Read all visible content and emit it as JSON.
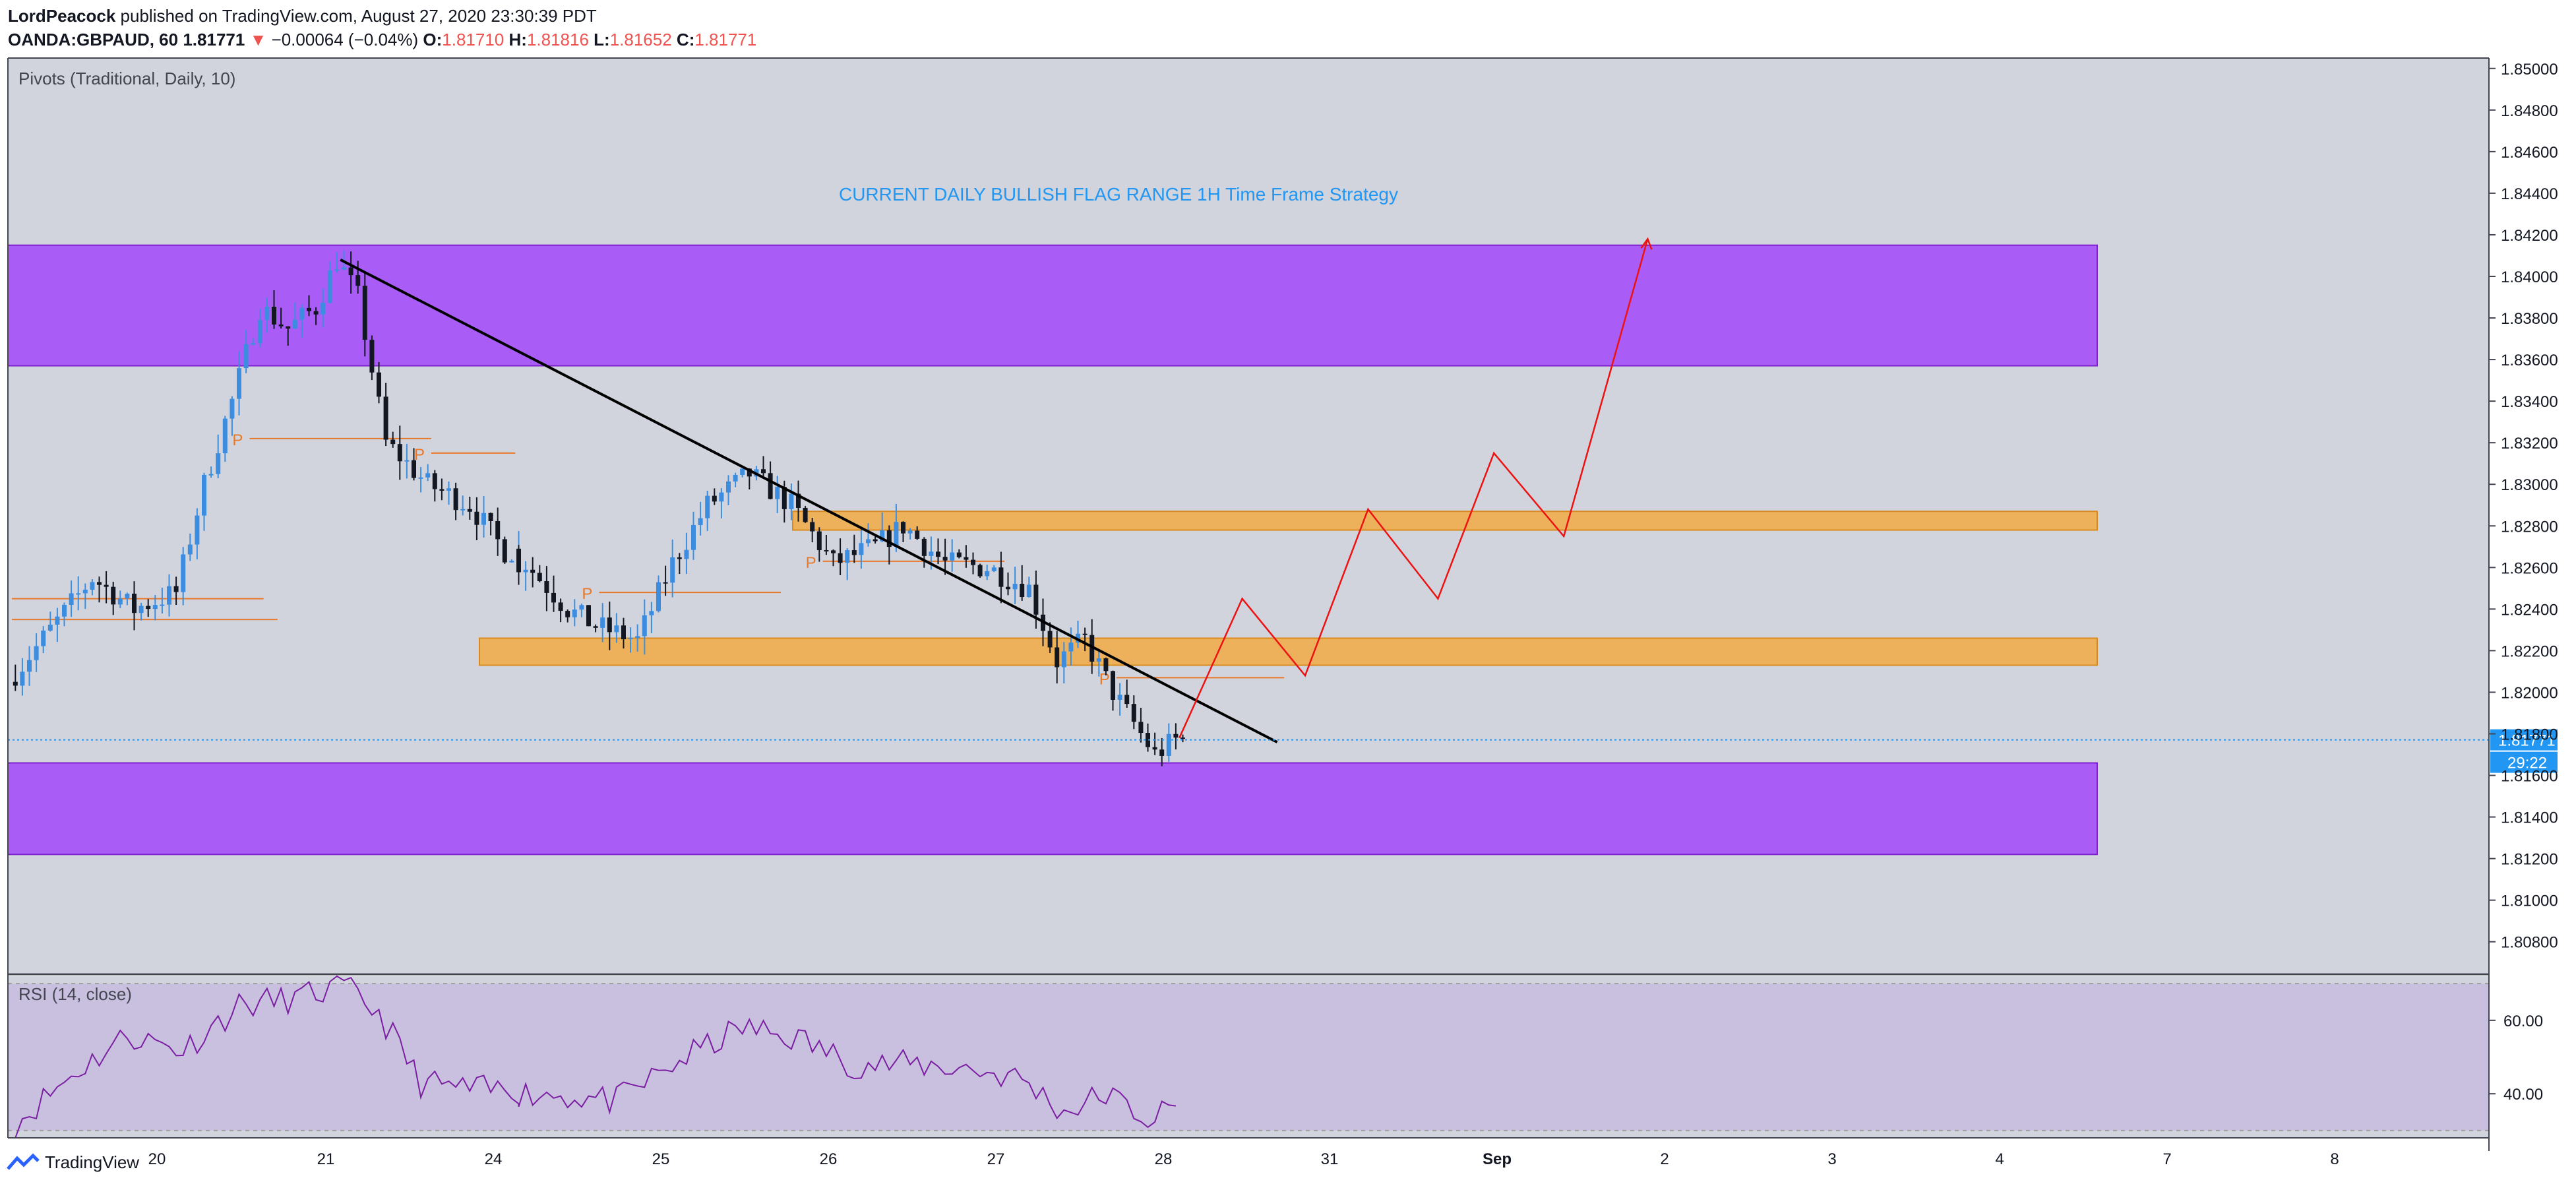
{
  "header": {
    "author": "LordPeacock",
    "published_text": "published on TradingView.com, August 27, 2020 23:30:39 PDT",
    "symbol": "OANDA:GBPAUD, 60",
    "last": "1.81771",
    "change_arrow": "▼",
    "change": "−0.00064 (−0.04%)",
    "o_label": "O:",
    "o_value": "1.81710",
    "h_label": "H:",
    "h_value": "1.81816",
    "l_label": "L:",
    "l_value": "1.81652",
    "c_label": "C:",
    "c_value": "1.81771"
  },
  "colors": {
    "pane_bg": "#d1d4dc",
    "rsi_bg": "#c9bfdf",
    "purple_zone": "#a855f7",
    "orange_zone": "#f0ad4e",
    "candle_up": "#3c8de0",
    "candle_down": "#131722",
    "projection": "#ee1111",
    "trendline": "#000000",
    "pivot": "#e8792b",
    "title_text": "#2196f3",
    "rsi_line": "#7b1fa2",
    "price_tag": "#2196f3"
  },
  "chart_data": [
    {
      "type": "candlestick",
      "symbol": "OANDA:GBPAUD",
      "interval": "60",
      "indicator_label": "Pivots (Traditional, Daily, 10)",
      "annotation": "CURRENT DAILY BULLISH FLAG RANGE 1H Time Frame Strategy",
      "ylim": [
        1.8065,
        1.8505
      ],
      "y_ticks": [
        "1.85000",
        "1.84800",
        "1.84600",
        "1.84400",
        "1.84200",
        "1.84000",
        "1.83800",
        "1.83600",
        "1.83400",
        "1.83200",
        "1.83000",
        "1.82800",
        "1.82600",
        "1.82400",
        "1.82200",
        "1.82000",
        "1.81800",
        "1.81600",
        "1.81400",
        "1.81200",
        "1.81000",
        "1.80800"
      ],
      "x_ticks": [
        "20",
        "21",
        "24",
        "25",
        "26",
        "27",
        "28",
        "31",
        "Sep",
        "2",
        "3",
        "4",
        "7",
        "8"
      ],
      "current_price": "1.81771",
      "countdown": "29:22",
      "zones": [
        {
          "kind": "supply",
          "from": 1.8357,
          "to": 1.8415,
          "color": "purple"
        },
        {
          "kind": "demand",
          "from": 1.8122,
          "to": 1.8166,
          "color": "purple"
        },
        {
          "kind": "resistance",
          "from": 1.8278,
          "to": 1.8287,
          "color": "orange"
        },
        {
          "kind": "support",
          "from": 1.8213,
          "to": 1.8226,
          "color": "orange"
        }
      ],
      "trendline": {
        "start": [
          "Aug 20 23:00",
          1.8408
        ],
        "end": [
          "Aug 28 13:00",
          1.8176
        ]
      },
      "pivot_label": "P",
      "pivots": [
        {
          "start": "Aug 20 10:00",
          "end": "Aug 21 12:00",
          "level": 1.8322
        },
        {
          "start": "Aug 21 12:00",
          "end": "Aug 22 10:00",
          "level": 1.8315
        },
        {
          "start": "Aug 24 12:00",
          "end": "Aug 25 14:00",
          "level": 1.8248
        },
        {
          "start": "Aug 25 20:00",
          "end": "Aug 26 22:00",
          "level": 1.8263
        },
        {
          "start": "Aug 27 14:00",
          "end": "Aug 28 14:00",
          "level": 1.8207
        },
        {
          "start": "Aug 19 00:00",
          "end": "Aug 20 12:00",
          "level": 1.8245
        },
        {
          "start": "Aug 19 00:00",
          "end": "Aug 20 14:00",
          "level": 1.8235
        }
      ],
      "projection_path": [
        [
          "Aug 27 23:00",
          1.8178
        ],
        [
          "Aug 28 08:00",
          1.8245
        ],
        [
          "Aug 28 17:00",
          1.8208
        ],
        [
          "Aug 31 02:00",
          1.8288
        ],
        [
          "Aug 31 12:00",
          1.8245
        ],
        [
          "Aug 31 20:00",
          1.8315
        ],
        [
          "Sep 1 06:00",
          1.8275
        ],
        [
          "Sep 1 18:00",
          1.8418
        ]
      ],
      "price_path": [
        [
          "Aug 19 00:00",
          1.8205
        ],
        [
          "Aug 19 06:00",
          1.823
        ],
        [
          "Aug 19 12:00",
          1.8255
        ],
        [
          "Aug 19 18:00",
          1.824
        ],
        [
          "Aug 20 00:00",
          1.8248
        ],
        [
          "Aug 20 04:00",
          1.83
        ],
        [
          "Aug 20 08:00",
          1.834
        ],
        [
          "Aug 20 12:00",
          1.8385
        ],
        [
          "Aug 20 16:00",
          1.8375
        ],
        [
          "Aug 20 20:00",
          1.8385
        ],
        [
          "Aug 20 23:00",
          1.8408
        ],
        [
          "Aug 21 02:00",
          1.839
        ],
        [
          "Aug 21 06:00",
          1.832
        ],
        [
          "Aug 21 12:00",
          1.83
        ],
        [
          "Aug 21 18:00",
          1.829
        ],
        [
          "Aug 21 23:00",
          1.8268
        ],
        [
          "Aug 24 02:00",
          1.8262
        ],
        [
          "Aug 24 08:00",
          1.824
        ],
        [
          "Aug 24 12:00",
          1.8232
        ],
        [
          "Aug 24 18:00",
          1.8225
        ],
        [
          "Aug 24 23:00",
          1.8262
        ],
        [
          "Aug 25 04:00",
          1.829
        ],
        [
          "Aug 25 10:00",
          1.8305
        ],
        [
          "Aug 25 16:00",
          1.829
        ],
        [
          "Aug 25 22:00",
          1.8262
        ],
        [
          "Aug 26 04:00",
          1.827
        ],
        [
          "Aug 26 08:00",
          1.828
        ],
        [
          "Aug 26 14:00",
          1.8262
        ],
        [
          "Aug 26 20:00",
          1.826
        ],
        [
          "Aug 27 02:00",
          1.825
        ],
        [
          "Aug 27 06:00",
          1.8215
        ],
        [
          "Aug 27 10:00",
          1.8225
        ],
        [
          "Aug 27 14:00",
          1.82
        ],
        [
          "Aug 27 18:00",
          1.818
        ],
        [
          "Aug 27 20:00",
          1.817
        ],
        [
          "Aug 27 23:00",
          1.8177
        ]
      ]
    },
    {
      "type": "line",
      "indicator": "RSI",
      "label": "RSI (14, close)",
      "ylim": [
        28,
        72
      ],
      "y_ticks": [
        "60.00",
        "40.00"
      ],
      "band": [
        30,
        70
      ],
      "values": [
        [
          "Aug 19 00:00",
          32
        ],
        [
          "Aug 19 08:00",
          45
        ],
        [
          "Aug 19 16:00",
          56
        ],
        [
          "Aug 20 00:00",
          52
        ],
        [
          "Aug 20 08:00",
          64
        ],
        [
          "Aug 20 16:00",
          66
        ],
        [
          "Aug 20 23:00",
          69
        ],
        [
          "Aug 21 04:00",
          62
        ],
        [
          "Aug 21 10:00",
          43
        ],
        [
          "Aug 21 18:00",
          41
        ],
        [
          "Aug 24 04:00",
          40
        ],
        [
          "Aug 24 14:00",
          38
        ],
        [
          "Aug 25 00:00",
          50
        ],
        [
          "Aug 25 08:00",
          58
        ],
        [
          "Aug 25 16:00",
          55
        ],
        [
          "Aug 26 00:00",
          48
        ],
        [
          "Aug 26 08:00",
          48
        ],
        [
          "Aug 26 16:00",
          47
        ],
        [
          "Aug 27 00:00",
          44
        ],
        [
          "Aug 27 06:00",
          35
        ],
        [
          "Aug 27 12:00",
          40
        ],
        [
          "Aug 27 18:00",
          33
        ],
        [
          "Aug 27 23:00",
          37
        ]
      ]
    }
  ],
  "footer": {
    "brand": "TradingView"
  }
}
